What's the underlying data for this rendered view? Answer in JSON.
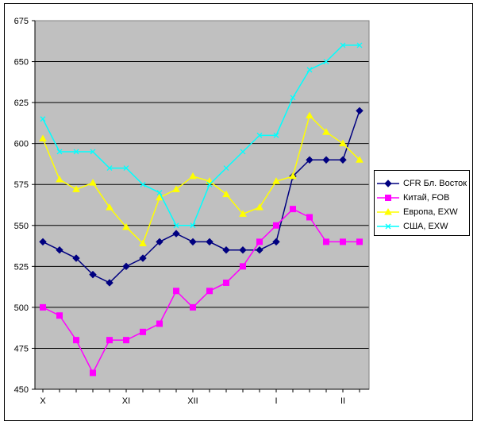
{
  "chart_data": {
    "type": "line",
    "title": "",
    "xlabel": "",
    "ylabel": "",
    "ylim": [
      450,
      675
    ],
    "yticks": [
      450,
      475,
      500,
      525,
      550,
      575,
      600,
      625,
      650,
      675
    ],
    "month_labels": [
      {
        "label": "X",
        "index": 0
      },
      {
        "label": "XI",
        "index": 5
      },
      {
        "label": "XII",
        "index": 9
      },
      {
        "label": "I",
        "index": 14
      },
      {
        "label": "II",
        "index": 18
      }
    ],
    "x_count": 20,
    "grid": true,
    "legend_position": "right",
    "series": [
      {
        "name": "CFR Бл. Восток",
        "color": "#000080",
        "marker": "diamond",
        "values": [
          540,
          535,
          530,
          520,
          515,
          525,
          530,
          540,
          545,
          540,
          540,
          535,
          535,
          535,
          540,
          580,
          590,
          590,
          590,
          620
        ]
      },
      {
        "name": "Китай, FOB",
        "color": "#ff00ff",
        "marker": "square",
        "values": [
          500,
          495,
          480,
          460,
          480,
          480,
          485,
          490,
          510,
          500,
          510,
          515,
          525,
          540,
          550,
          560,
          555,
          540,
          540,
          540
        ]
      },
      {
        "name": "Европа, EXW",
        "color": "#ffff00",
        "marker": "triangle",
        "values": [
          603,
          578,
          572,
          576,
          561,
          549,
          539,
          567,
          572,
          580,
          577,
          569,
          557,
          561,
          577,
          580,
          617,
          607,
          600,
          590
        ]
      },
      {
        "name": "США, EXW",
        "color": "#00ffff",
        "marker": "x",
        "values": [
          615,
          595,
          595,
          595,
          585,
          585,
          575,
          570,
          550,
          550,
          575,
          585,
          595,
          605,
          605,
          628,
          645,
          650,
          660,
          660
        ]
      }
    ]
  },
  "style": {
    "plot_background": "#c0c0c0",
    "grid_color": "#000000"
  }
}
